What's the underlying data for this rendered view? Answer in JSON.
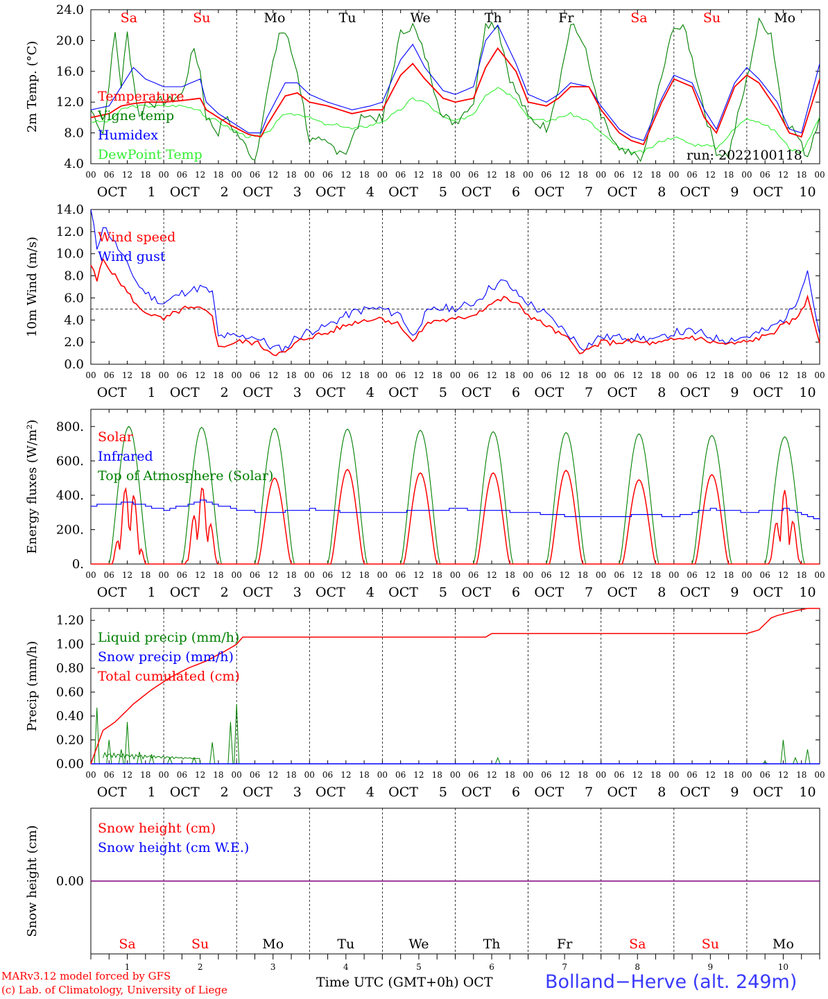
{
  "days": [
    {
      "dow": "Sa",
      "date": "1",
      "weekend": true
    },
    {
      "dow": "Su",
      "date": "2",
      "weekend": true
    },
    {
      "dow": "Mo",
      "date": "3",
      "weekend": false
    },
    {
      "dow": "Tu",
      "date": "4",
      "weekend": false
    },
    {
      "dow": "We",
      "date": "5",
      "weekend": false
    },
    {
      "dow": "Th",
      "date": "6",
      "weekend": false
    },
    {
      "dow": "Fr",
      "date": "7",
      "weekend": false
    },
    {
      "dow": "Sa",
      "date": "8",
      "weekend": true
    },
    {
      "dow": "Su",
      "date": "9",
      "weekend": true
    },
    {
      "dow": "Mo",
      "date": "10",
      "weekend": false
    }
  ],
  "hour_ticks": [
    "00",
    "06",
    "12",
    "18"
  ],
  "month": "OCT",
  "footer": {
    "model": "MARv3.12 model forced by GFS",
    "lab": "(c) Lab. of Climatology, University of Liege",
    "time_label": "Time UTC (GMT+0h) OCT",
    "station": "Bolland−Herve (alt. 249m)"
  },
  "colors": {
    "red": "#ff0000",
    "green": "#008000",
    "blue": "#0000ff",
    "light_green": "#33ee33",
    "purple": "#800080"
  },
  "chart_data": [
    {
      "type": "line",
      "ylabel": "2m Temp. (°C)",
      "yticks": [
        "4.0",
        "8.0",
        "12.0",
        "16.0",
        "20.0",
        "24.0"
      ],
      "ylim": [
        4,
        24
      ],
      "annotation": "run: 2022100118",
      "x_unit": "hours since Oct 1 00 UTC",
      "series": [
        {
          "name": "Temperature",
          "color": "red",
          "x": [
            0,
            6,
            10,
            14,
            18,
            24,
            30,
            36,
            38,
            42,
            46,
            52,
            56,
            58,
            64,
            68,
            72,
            78,
            82,
            86,
            92,
            96,
            102,
            106,
            110,
            116,
            120,
            126,
            130,
            134,
            140,
            144,
            150,
            154,
            158,
            164,
            168,
            174,
            178,
            182,
            188,
            192,
            198,
            202,
            206,
            212,
            216,
            220,
            226,
            230,
            234,
            240
          ],
          "y": [
            10.0,
            10.5,
            11.5,
            11.8,
            12.0,
            12.0,
            12.2,
            12.5,
            11.0,
            10.0,
            9.0,
            7.8,
            7.5,
            9.0,
            12.8,
            13.2,
            12.0,
            11.5,
            11.0,
            10.5,
            11.0,
            11.0,
            15.5,
            17.0,
            15.0,
            12.5,
            12.0,
            12.5,
            16.5,
            19.0,
            16.0,
            12.0,
            11.5,
            12.5,
            14.0,
            14.0,
            11.0,
            8.0,
            7.0,
            6.5,
            12.0,
            15.0,
            14.0,
            10.0,
            8.0,
            14.0,
            15.5,
            14.5,
            11.0,
            8.0,
            7.5,
            15.0
          ]
        }
      ],
      "extra_series": [
        {
          "name": "Vigne temp",
          "color": "green",
          "x": [
            0,
            4,
            8,
            10,
            12,
            14,
            16,
            18,
            24,
            30,
            34,
            36,
            38,
            42,
            44,
            48,
            54,
            58,
            62,
            64,
            68,
            72,
            78,
            84,
            90,
            96,
            102,
            106,
            110,
            116,
            120,
            126,
            130,
            134,
            138,
            144,
            150,
            154,
            158,
            162,
            168,
            174,
            178,
            182,
            186,
            192,
            196,
            202,
            206,
            210,
            216,
            220,
            224,
            228,
            232,
            236,
            240
          ],
          "y": [
            11,
            8,
            21,
            14,
            21,
            15,
            10,
            12,
            12,
            13,
            19,
            16,
            10,
            8,
            10,
            8,
            4.5,
            13,
            21,
            21,
            16,
            7,
            6.5,
            5.5,
            10.5,
            9.5,
            21,
            22,
            18,
            10,
            9.5,
            12,
            22.5,
            22,
            15,
            10,
            8.5,
            14,
            22,
            20,
            10,
            5.5,
            5,
            5,
            12,
            22,
            21,
            11,
            5.5,
            5,
            15,
            22.5,
            21,
            10,
            8,
            5,
            10.5
          ]
        },
        {
          "name": "Humidex",
          "color": "blue",
          "x": [
            0,
            6,
            10,
            14,
            18,
            24,
            30,
            36,
            38,
            42,
            46,
            52,
            56,
            58,
            64,
            68,
            72,
            78,
            82,
            86,
            92,
            96,
            102,
            106,
            110,
            116,
            120,
            126,
            130,
            134,
            140,
            144,
            150,
            154,
            158,
            164,
            168,
            174,
            178,
            182,
            188,
            192,
            198,
            202,
            206,
            212,
            216,
            220,
            226,
            230,
            234,
            240
          ],
          "y": [
            11,
            11.5,
            14,
            16.5,
            15,
            14,
            14,
            15,
            12,
            10.5,
            9.5,
            8,
            8,
            10,
            14.5,
            14.5,
            13,
            12,
            11.5,
            11,
            11.5,
            12,
            17.5,
            19.5,
            16.5,
            13.5,
            13,
            14,
            20,
            22,
            17,
            13,
            12,
            13,
            14.5,
            14,
            11.5,
            8.5,
            7.5,
            7,
            12.5,
            15.5,
            14.5,
            11,
            8.5,
            14.5,
            16.5,
            15,
            12,
            8.5,
            8,
            17
          ]
        },
        {
          "name": "DewPoint Temp",
          "color": "light_green",
          "x": [
            0,
            6,
            10,
            14,
            18,
            24,
            30,
            36,
            38,
            42,
            46,
            52,
            56,
            58,
            64,
            68,
            72,
            78,
            82,
            86,
            92,
            96,
            102,
            106,
            110,
            116,
            120,
            126,
            130,
            134,
            140,
            144,
            150,
            154,
            158,
            164,
            168,
            174,
            178,
            182,
            188,
            192,
            198,
            202,
            206,
            212,
            216,
            220,
            226,
            230,
            234,
            240
          ],
          "y": [
            9.5,
            9.5,
            11,
            11.5,
            11.5,
            11.5,
            11.5,
            11,
            10,
            9.5,
            8.5,
            7.5,
            7.5,
            8,
            10.5,
            10.5,
            10,
            9,
            9,
            8.5,
            9,
            9.5,
            11,
            12.5,
            12,
            10,
            9.5,
            10.5,
            13,
            14,
            12.5,
            10,
            9.5,
            10,
            10.5,
            9.5,
            8,
            6,
            5.5,
            5.5,
            7,
            7.5,
            6.5,
            6.5,
            6,
            8.5,
            10,
            9.5,
            8,
            6,
            5.5,
            10
          ]
        }
      ]
    },
    {
      "type": "line",
      "ylabel": "10m Wind (m/s)",
      "yticks": [
        "0.0",
        "2.0",
        "4.0",
        "6.0",
        "8.0",
        "10.0",
        "12.0",
        "14.0"
      ],
      "ylim": [
        0,
        14
      ],
      "reference_line": 5,
      "series": [
        {
          "name": "Wind speed",
          "color": "red",
          "x": [
            0,
            2,
            4,
            8,
            12,
            16,
            20,
            24,
            30,
            36,
            40,
            42,
            48,
            54,
            60,
            64,
            68,
            72,
            78,
            84,
            90,
            96,
            102,
            106,
            110,
            114,
            120,
            126,
            132,
            136,
            140,
            144,
            150,
            156,
            162,
            168,
            174,
            180,
            186,
            192,
            198,
            204,
            210,
            216,
            222,
            228,
            232,
            236,
            240
          ],
          "y": [
            9.0,
            7.5,
            9.5,
            8.0,
            6.5,
            5.0,
            4.5,
            4.0,
            5.0,
            5.0,
            4.5,
            1.5,
            2.0,
            2.0,
            1.0,
            1.0,
            2.0,
            2.5,
            2.8,
            3.5,
            4.0,
            4.2,
            3.5,
            2.0,
            3.5,
            4.0,
            4.0,
            4.5,
            5.5,
            6.0,
            5.5,
            4.5,
            3.5,
            2.5,
            1.0,
            2.0,
            2.0,
            2.0,
            1.8,
            2.2,
            2.5,
            2.0,
            1.8,
            2.0,
            2.5,
            3.5,
            4.0,
            6.0,
            2.0
          ]
        },
        {
          "name": "Wind gust",
          "color": "blue",
          "x": [
            0,
            2,
            4,
            8,
            12,
            16,
            20,
            24,
            30,
            36,
            40,
            42,
            48,
            54,
            60,
            64,
            68,
            72,
            78,
            84,
            90,
            96,
            102,
            106,
            110,
            114,
            120,
            126,
            132,
            136,
            140,
            144,
            150,
            156,
            162,
            168,
            174,
            180,
            186,
            192,
            198,
            204,
            210,
            216,
            222,
            228,
            232,
            236,
            240
          ],
          "y": [
            14.0,
            10.5,
            12.5,
            11.0,
            9.0,
            7.0,
            6.0,
            5.5,
            6.5,
            7.0,
            6.5,
            2.5,
            2.5,
            2.5,
            1.5,
            1.5,
            2.5,
            3.0,
            3.5,
            4.5,
            5.0,
            5.0,
            4.5,
            2.5,
            4.5,
            5.0,
            5.0,
            5.5,
            7.0,
            7.5,
            6.5,
            5.5,
            4.5,
            3.0,
            1.5,
            2.5,
            2.5,
            2.5,
            2.2,
            2.8,
            3.0,
            2.5,
            2.2,
            2.5,
            3.0,
            4.0,
            5.5,
            8.5,
            2.5
          ]
        }
      ]
    },
    {
      "type": "line",
      "ylabel": "Energy fluxes (W/m²)",
      "yticks": [
        "0.",
        "200.",
        "400.",
        "600.",
        "800."
      ],
      "ylim": [
        0,
        900
      ],
      "series": [
        {
          "name": "Solar",
          "color": "red",
          "peaks": [
            480,
            450,
            500,
            550,
            530,
            530,
            545,
            490,
            520,
            430
          ]
        },
        {
          "name": "Infrared",
          "color": "blue",
          "x": [
            0,
            12,
            24,
            36,
            48,
            60,
            72,
            84,
            96,
            108,
            120,
            132,
            144,
            156,
            168,
            180,
            192,
            204,
            216,
            228,
            240
          ],
          "y": [
            340,
            360,
            310,
            370,
            310,
            300,
            320,
            300,
            300,
            310,
            320,
            310,
            300,
            280,
            270,
            285,
            280,
            320,
            300,
            320,
            255
          ]
        },
        {
          "name": "Top of Atmosphere (Solar)",
          "color": "green",
          "peaks": [
            800,
            795,
            790,
            785,
            778,
            770,
            765,
            757,
            748,
            740
          ]
        }
      ]
    },
    {
      "type": "line",
      "ylabel": "Precip (mm/h)",
      "yticks": [
        "0.00",
        "0.20",
        "0.40",
        "0.60",
        "0.80",
        "1.00",
        "1.20"
      ],
      "ylim": [
        0,
        1.3
      ],
      "series": [
        {
          "name": "Liquid precip (mm/h)",
          "color": "green",
          "spikes": [
            [
              2,
              0.47
            ],
            [
              6,
              0.2
            ],
            [
              10,
              0.12
            ],
            [
              12,
              0.35
            ],
            [
              16,
              0.1
            ],
            [
              20,
              0.08
            ],
            [
              26,
              0.05
            ],
            [
              34,
              0.05
            ],
            [
              40,
              0.18
            ],
            [
              46,
              0.35
            ],
            [
              48,
              0.5
            ],
            [
              134,
              0.05
            ],
            [
              222,
              0.02
            ],
            [
              228,
              0.2
            ],
            [
              232,
              0.05
            ],
            [
              236,
              0.12
            ]
          ]
        },
        {
          "name": "Snow precip (mm/h)",
          "color": "blue",
          "values": [
            0
          ]
        },
        {
          "name": "Total cumulated (cm)",
          "color": "red",
          "x": [
            0,
            4,
            8,
            14,
            20,
            26,
            32,
            38,
            44,
            48,
            50,
            60,
            96,
            120,
            130,
            132,
            168,
            210,
            216,
            220,
            224,
            226,
            232,
            236,
            240
          ],
          "y": [
            0,
            0.28,
            0.35,
            0.5,
            0.62,
            0.72,
            0.8,
            0.86,
            0.94,
            1.0,
            1.06,
            1.06,
            1.06,
            1.06,
            1.06,
            1.09,
            1.09,
            1.09,
            1.09,
            1.12,
            1.22,
            1.24,
            1.28,
            1.3,
            1.3
          ]
        }
      ]
    },
    {
      "type": "line",
      "ylabel": "Snow height (cm)",
      "yticks": [
        "0.00"
      ],
      "series": [
        {
          "name": "Snow height (cm)",
          "color": "red",
          "values": [
            0
          ]
        },
        {
          "name": "Snow height (cm W.E.)",
          "color": "blue",
          "values": [
            0
          ]
        }
      ]
    }
  ]
}
